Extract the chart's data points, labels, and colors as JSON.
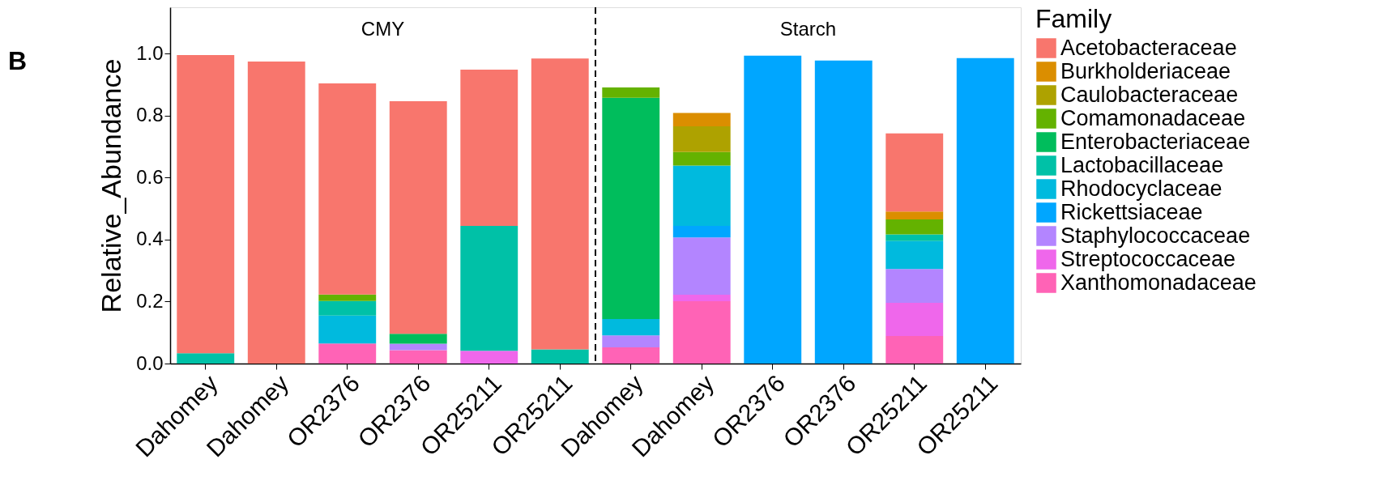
{
  "chart_data": {
    "type": "bar",
    "title": "B",
    "ylabel": "Relative_Abundance",
    "legend_title": "Family",
    "categories": [
      "Dahomey",
      "Dahomey",
      "OR2376",
      "OR2376",
      "OR25211",
      "OR25211",
      "Dahomey",
      "Dahomey",
      "OR2376",
      "OR2376",
      "OR25211",
      "OR25211"
    ],
    "stacked": true,
    "legend": "top right",
    "grid": false,
    "ylim": [
      0,
      1.15
    ],
    "yticks": [
      {
        "value": 0,
        "label": "0.0"
      },
      0.2,
      0.4,
      0.6,
      0.8,
      {
        "value": 1,
        "label": "1.0"
      }
    ],
    "annotations": [
      "CMY",
      "Starch"
    ],
    "series": [
      {
        "name": "Xanthomonadaceae",
        "color": "#ff63b6",
        "values": [
          null,
          null,
          0.065,
          0.043,
          null,
          null,
          0.052,
          0.201,
          null,
          null,
          0.089,
          null
        ]
      },
      {
        "name": "Streptococcaceae",
        "color": "#ef67eb",
        "values": [
          null,
          null,
          null,
          null,
          0.041,
          null,
          null,
          0.021,
          null,
          null,
          0.107,
          null
        ]
      },
      {
        "name": "Staphylococcaceae",
        "color": "#b385ff",
        "values": [
          null,
          null,
          null,
          0.021,
          null,
          null,
          0.039,
          0.185,
          null,
          null,
          0.109,
          null
        ]
      },
      {
        "name": "Rickettsiaceae",
        "color": "#00a6ff",
        "values": [
          null,
          null,
          null,
          null,
          null,
          null,
          null,
          0.037,
          0.994,
          0.978,
          null,
          0.986
        ]
      },
      {
        "name": "Rhodocyclaceae",
        "color": "#00bade",
        "values": [
          null,
          null,
          0.09,
          null,
          null,
          null,
          0.053,
          0.195,
          null,
          null,
          0.09,
          null
        ]
      },
      {
        "name": "Lactobacillaceae",
        "color": "#00c1a7",
        "values": [
          0.033,
          null,
          0.047,
          null,
          0.403,
          0.046,
          null,
          null,
          null,
          null,
          0.022,
          null
        ]
      },
      {
        "name": "Enterobacteriaceae",
        "color": "#00bd5c",
        "values": [
          null,
          null,
          null,
          0.032,
          null,
          null,
          0.714,
          null,
          null,
          null,
          null,
          null
        ]
      },
      {
        "name": "Comamonadaceae",
        "color": "#64b200",
        "values": [
          null,
          null,
          0.021,
          null,
          null,
          null,
          0.033,
          0.044,
          null,
          null,
          0.048,
          null
        ]
      },
      {
        "name": "Caulobacteraceae",
        "color": "#aea200",
        "values": [
          null,
          null,
          null,
          null,
          null,
          null,
          null,
          0.083,
          null,
          null,
          null,
          null
        ]
      },
      {
        "name": "Burkholderiaceae",
        "color": "#db8e00",
        "values": [
          null,
          null,
          null,
          null,
          null,
          null,
          null,
          0.043,
          null,
          null,
          0.026,
          null
        ]
      },
      {
        "name": "Acetobacteraceae",
        "color": "#f8766d",
        "values": [
          0.963,
          0.975,
          0.681,
          0.751,
          0.505,
          0.939,
          null,
          null,
          null,
          null,
          0.252,
          null
        ]
      }
    ]
  }
}
